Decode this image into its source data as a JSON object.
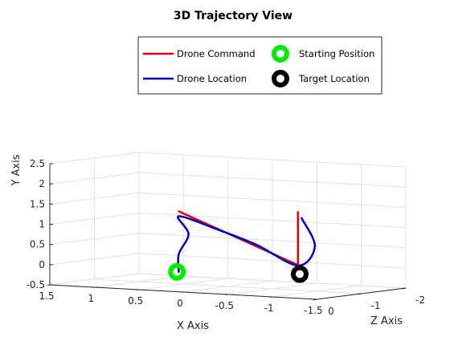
{
  "chart_data": {
    "type": "line",
    "projection": "3d",
    "title": "3D Trajectory View",
    "xlabel": "X Axis",
    "ylabel": "Y Axis",
    "zlabel": "Z Axis",
    "xlim": [
      1.5,
      -1.5
    ],
    "ylim": [
      -0.5,
      2.5
    ],
    "zlim": [
      0,
      -2
    ],
    "xticks": [
      "1.5",
      "1",
      "0.5",
      "0",
      "-0.5",
      "-1",
      "-1.5"
    ],
    "yticks": [
      "-0.5",
      "0",
      "0.5",
      "1",
      "1.5",
      "2",
      "2.5"
    ],
    "zticks": [
      "0",
      "-1",
      "-2"
    ],
    "grid": true,
    "legend_position": "top-right",
    "series": [
      {
        "name": "Drone Command",
        "kind": "line",
        "color": "#e60000",
        "points": [
          {
            "x": -1.26,
            "y": 1.62,
            "z": -0.06
          },
          {
            "x": -1.26,
            "y": 0.31,
            "z": -0.06
          },
          {
            "x": 0.08,
            "y": 1.48,
            "z": -0.06
          }
        ]
      },
      {
        "name": "Drone Location",
        "kind": "line",
        "color": "#0000cc",
        "points": [
          {
            "x": 0.08,
            "y": -0.02,
            "z": -0.06
          },
          {
            "x": 0.08,
            "y": 0.42,
            "z": -0.06
          },
          {
            "x": -0.03,
            "y": 0.93,
            "z": -0.06
          },
          {
            "x": 0.08,
            "y": 1.36,
            "z": -0.06
          },
          {
            "x": -0.36,
            "y": 1.08,
            "z": -0.06
          },
          {
            "x": -0.79,
            "y": 0.76,
            "z": -0.06
          },
          {
            "x": -1.26,
            "y": 0.3,
            "z": -0.06
          },
          {
            "x": -1.45,
            "y": 0.8,
            "z": -0.06
          },
          {
            "x": -1.3,
            "y": 1.48,
            "z": -0.06
          }
        ]
      },
      {
        "name": "Starting Position",
        "kind": "marker",
        "color": "#00ee00",
        "points": [
          {
            "x": 0.1,
            "y": -0.02,
            "z": -0.06
          }
        ]
      },
      {
        "name": "Target Location",
        "kind": "marker",
        "color": "#000000",
        "points": [
          {
            "x": -1.28,
            "y": 0.09,
            "z": -0.06
          }
        ]
      }
    ]
  }
}
